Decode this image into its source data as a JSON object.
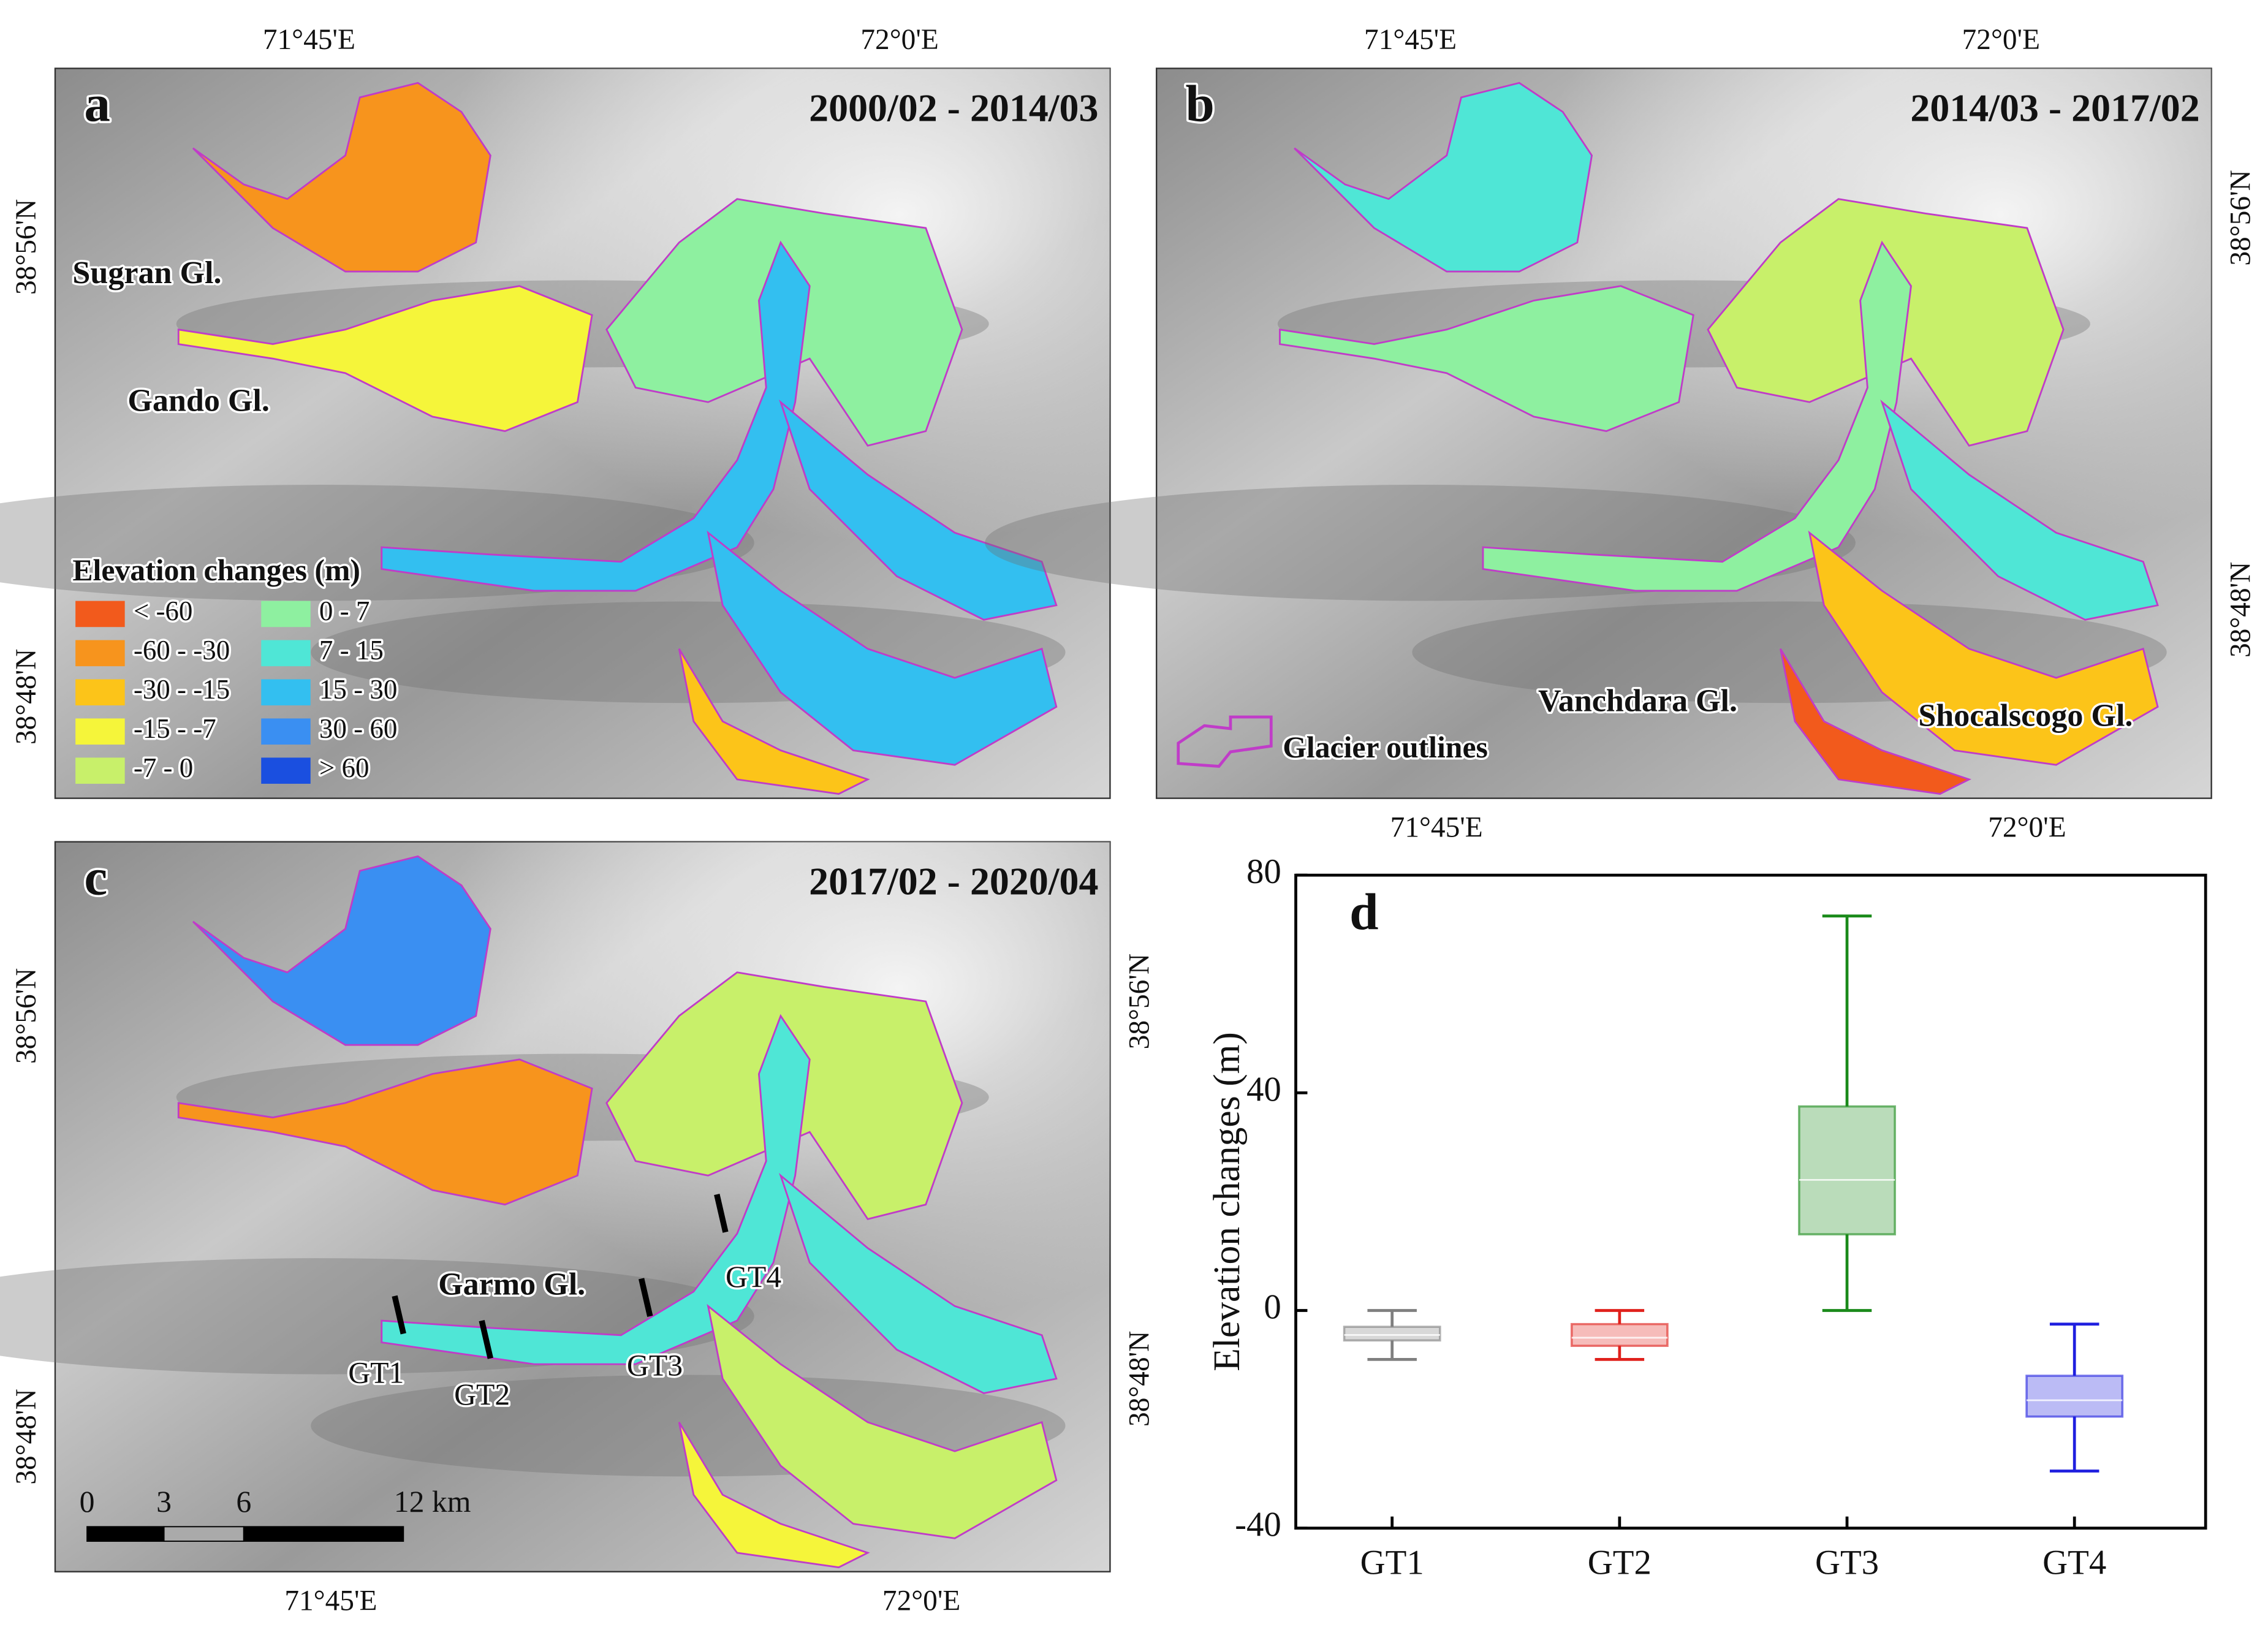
{
  "panels": [
    {
      "letter": "a",
      "period": "2000/02 - 2014/03",
      "labels": [
        "Sugran Gl.",
        "Gando Gl."
      ],
      "coords": {
        "top": [
          "71°45'E",
          "72°0'E"
        ],
        "left": [
          "38°56'N",
          "38°48'N"
        ]
      },
      "legend": {
        "title": "Elevation changes (m)",
        "entries": [
          {
            "label": "< -60",
            "color": "#f25a1c"
          },
          {
            "label": "-60 - -30",
            "color": "#f7941d"
          },
          {
            "label": "-30 - -15",
            "color": "#fcc419"
          },
          {
            "label": "-15 - -7",
            "color": "#f5f53a"
          },
          {
            "label": "-7 - 0",
            "color": "#c8f06a"
          },
          {
            "label": "0 - 7",
            "color": "#8ef0a0"
          },
          {
            "label": "7 - 15",
            "color": "#4fe6d6"
          },
          {
            "label": "15 - 30",
            "color": "#33bff0"
          },
          {
            "label": "30 - 60",
            "color": "#3a8ff2"
          },
          {
            "label": "> 60",
            "color": "#1a4fe0"
          }
        ]
      }
    },
    {
      "letter": "b",
      "period": "2014/03 - 2017/02",
      "labels": [
        "Vanchdara Gl.",
        "Shocalscogo Gl."
      ],
      "coords": {
        "top": [
          "71°45'E",
          "72°0'E"
        ],
        "right": [
          "38°56'N",
          "38°48'N"
        ],
        "bottom": [
          "71°45'E",
          "72°0'E"
        ]
      },
      "outline_legend": "Glacier outlines"
    },
    {
      "letter": "c",
      "period": "2017/02 - 2020/04",
      "labels": [
        "Garmo Gl."
      ],
      "profiles": [
        "GT1",
        "GT2",
        "GT3",
        "GT4"
      ],
      "scalebar": [
        "0",
        "3",
        "6",
        "12 km"
      ],
      "coords": {
        "left": [
          "38°56'N",
          "38°48'N"
        ],
        "right": [
          "38°56'N",
          "38°48'N"
        ],
        "bottom": [
          "71°45'E",
          "72°0'E"
        ]
      }
    }
  ],
  "chart_data": {
    "type": "box",
    "panel_label": "d",
    "y_label": "Elevation changes (m)",
    "categories": [
      "GT1",
      "GT2",
      "GT3",
      "GT4"
    ],
    "boxes": [
      {
        "min": -9,
        "q1": -5.5,
        "median": -4.5,
        "q3": -3,
        "max": 0,
        "color": "#7f7f7f"
      },
      {
        "min": -9,
        "q1": -6.5,
        "median": -5,
        "q3": -2.5,
        "max": 0,
        "color": "#e0201b"
      },
      {
        "min": 0,
        "q1": 14,
        "median": 24,
        "q3": 37.5,
        "max": 72.5,
        "color": "#1a8a1a"
      },
      {
        "min": -29.5,
        "q1": -19.5,
        "median": -16.5,
        "q3": -12,
        "max": -2.5,
        "color": "#1f1fdf"
      }
    ],
    "ylim": [
      -40,
      80
    ],
    "yticks": [
      -40,
      0,
      40,
      80
    ]
  }
}
